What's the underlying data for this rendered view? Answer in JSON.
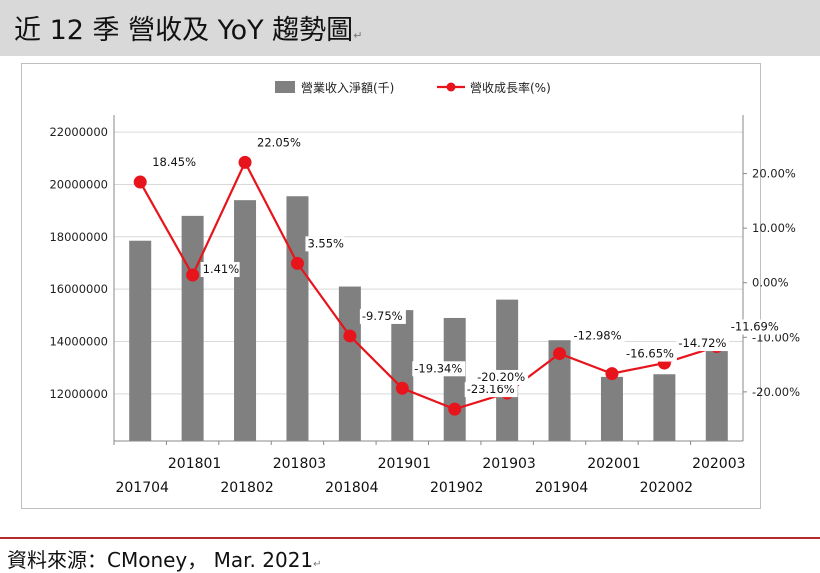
{
  "title": "近 12 季  營收及 YoY 趨勢圖",
  "title_mark": "↵",
  "source": "資料來源：CMoney，  Mar. 2021",
  "source_mark": "↵",
  "colors": {
    "bar": "#808080",
    "line": "#e8141c",
    "header_bg": "#d9d9d9",
    "divider": "#b52a2a"
  },
  "chart_data": {
    "type": "bar+line",
    "categories": [
      "201704",
      "201801",
      "201802",
      "201803",
      "201804",
      "201901",
      "201902",
      "201903",
      "201904",
      "202001",
      "202002",
      "202003"
    ],
    "series": [
      {
        "name": "營業收入淨額(千)",
        "type": "bar",
        "axis": "left",
        "values": [
          17850000,
          18800000,
          19400000,
          19550000,
          16100000,
          15200000,
          14900000,
          15600000,
          14050000,
          12650000,
          12750000,
          13800000
        ]
      },
      {
        "name": "營收成長率(%)",
        "type": "line",
        "axis": "right",
        "values": [
          18.45,
          1.41,
          22.05,
          3.55,
          -9.75,
          -19.34,
          -23.16,
          -20.2,
          -12.98,
          -16.65,
          -14.72,
          -11.69
        ],
        "labels": [
          "18.45%",
          "1.41%",
          "22.05%",
          "3.55%",
          "-9.75%",
          "-19.34%",
          "-23.16%",
          "-20.20%",
          "-12.98%",
          "-16.65%",
          "-14.72%",
          "-11.69%"
        ]
      }
    ],
    "y_left": {
      "ticks": [
        "22000000",
        "20000000",
        "18000000",
        "16000000",
        "14000000",
        "12000000"
      ],
      "tick_values": [
        22000000,
        20000000,
        18000000,
        16000000,
        14000000,
        12000000
      ],
      "range": [
        10200000,
        22500000
      ]
    },
    "y_right": {
      "ticks": [
        "20.00%",
        "10.00%",
        "0.00%",
        "-10.00%",
        "-20.00%"
      ],
      "tick_values": [
        20,
        10,
        0,
        -10,
        -20
      ],
      "range": [
        -29,
        30
      ]
    },
    "legend_position": "top-center"
  }
}
